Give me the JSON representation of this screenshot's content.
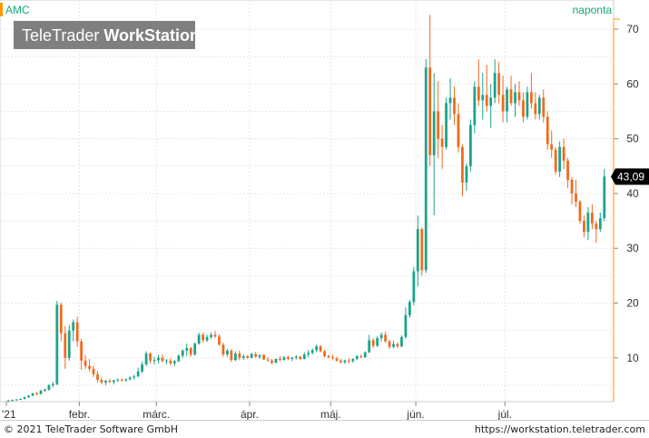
{
  "header": {
    "symbol": "AMC",
    "interval": "naponta",
    "watermark_light": "TeleTrader ",
    "watermark_bold": "WorkStation"
  },
  "footer": {
    "copyright": "© 2021 TeleTrader Software GmbH",
    "url": "https://workstation.teletrader.com"
  },
  "colors": {
    "up": "#1aa38a",
    "down": "#ef6a1e",
    "accent": "#ff9900",
    "interval_text": "#13a87a",
    "symbol_text": "#13a87a",
    "watermark_bg": "#7f7f7f"
  },
  "chart_data": {
    "type": "candlestick",
    "symbol": "AMC",
    "interval": "naponta",
    "ylim": [
      2,
      74
    ],
    "y_ticks": [
      10,
      20,
      30,
      40,
      50,
      60,
      70
    ],
    "last_price": 43.09,
    "last_price_label": "43,09",
    "x_ticks": [
      {
        "label": "'21",
        "index": 0
      },
      {
        "label": "febr.",
        "index": 18
      },
      {
        "label": "márc.",
        "index": 37
      },
      {
        "label": "ápr.",
        "index": 60
      },
      {
        "label": "máj.",
        "index": 80
      },
      {
        "label": "jún.",
        "index": 101
      },
      {
        "label": "júl.",
        "index": 123
      }
    ],
    "candles": [
      [
        2.1,
        2.3,
        2.0,
        2.2
      ],
      [
        2.2,
        2.4,
        2.1,
        2.3
      ],
      [
        2.3,
        2.5,
        2.2,
        2.4
      ],
      [
        2.4,
        2.6,
        2.3,
        2.5
      ],
      [
        2.5,
        2.9,
        2.4,
        2.8
      ],
      [
        2.8,
        3.2,
        2.7,
        3.1
      ],
      [
        3.1,
        3.6,
        3.0,
        3.5
      ],
      [
        3.5,
        3.8,
        3.2,
        3.4
      ],
      [
        3.4,
        4.2,
        3.3,
        4.0
      ],
      [
        4.0,
        4.4,
        3.8,
        4.2
      ],
      [
        4.2,
        5.2,
        4.0,
        5.0
      ],
      [
        5.0,
        5.6,
        4.6,
        5.2
      ],
      [
        5.2,
        20.4,
        5.0,
        19.7
      ],
      [
        19.7,
        20.1,
        13.0,
        14.5
      ],
      [
        14.5,
        15.8,
        8.0,
        10.0
      ],
      [
        10.0,
        16.0,
        9.5,
        15.0
      ],
      [
        15.0,
        17.0,
        13.0,
        16.5
      ],
      [
        16.5,
        17.5,
        12.0,
        13.0
      ],
      [
        13.0,
        13.5,
        7.8,
        9.5
      ],
      [
        9.5,
        10.5,
        8.0,
        8.5
      ],
      [
        8.5,
        9.8,
        7.5,
        8.0
      ],
      [
        8.0,
        8.6,
        6.5,
        7.0
      ],
      [
        7.0,
        7.6,
        5.5,
        6.0
      ],
      [
        6.0,
        6.4,
        5.2,
        5.5
      ],
      [
        5.5,
        6.0,
        5.0,
        5.8
      ],
      [
        5.8,
        6.2,
        5.4,
        5.6
      ],
      [
        5.6,
        6.0,
        5.2,
        5.9
      ],
      [
        5.9,
        6.3,
        5.6,
        6.0
      ],
      [
        6.0,
        6.3,
        5.7,
        5.9
      ],
      [
        5.9,
        6.2,
        5.6,
        6.1
      ],
      [
        6.1,
        6.6,
        5.9,
        6.4
      ],
      [
        6.4,
        6.9,
        6.0,
        6.6
      ],
      [
        6.6,
        8.2,
        6.5,
        7.5
      ],
      [
        7.5,
        9.3,
        7.2,
        8.8
      ],
      [
        8.8,
        11.2,
        8.5,
        10.8
      ],
      [
        10.8,
        11.0,
        9.0,
        9.5
      ],
      [
        9.5,
        10.2,
        8.8,
        9.6
      ],
      [
        9.6,
        10.5,
        9.0,
        10.0
      ],
      [
        10.0,
        10.6,
        9.2,
        9.4
      ],
      [
        9.4,
        9.8,
        8.8,
        9.5
      ],
      [
        9.5,
        9.9,
        8.6,
        9.0
      ],
      [
        9.0,
        9.6,
        8.5,
        9.4
      ],
      [
        9.4,
        10.6,
        9.2,
        10.4
      ],
      [
        10.4,
        11.6,
        10.0,
        11.3
      ],
      [
        11.3,
        12.6,
        10.4,
        11.8
      ],
      [
        11.8,
        12.0,
        10.2,
        10.6
      ],
      [
        10.6,
        12.8,
        10.4,
        12.6
      ],
      [
        12.6,
        14.6,
        12.4,
        14.2
      ],
      [
        14.2,
        14.6,
        12.8,
        13.2
      ],
      [
        13.2,
        14.2,
        12.9,
        13.8
      ],
      [
        13.8,
        14.6,
        13.4,
        14.2
      ],
      [
        14.2,
        14.9,
        13.6,
        13.9
      ],
      [
        13.9,
        14.3,
        12.2,
        12.4
      ],
      [
        12.4,
        12.8,
        10.2,
        10.6
      ],
      [
        10.6,
        11.6,
        10.2,
        11.3
      ],
      [
        11.3,
        11.6,
        9.2,
        9.6
      ],
      [
        9.6,
        11.2,
        9.4,
        10.8
      ],
      [
        10.8,
        11.3,
        9.6,
        10.0
      ],
      [
        10.0,
        10.6,
        9.6,
        10.3
      ],
      [
        10.3,
        10.5,
        9.8,
        10.0
      ],
      [
        10.0,
        10.9,
        9.9,
        10.7
      ],
      [
        10.7,
        11.1,
        10.0,
        10.2
      ],
      [
        10.2,
        10.6,
        9.8,
        10.5
      ],
      [
        10.5,
        10.7,
        9.6,
        9.7
      ],
      [
        9.7,
        10.1,
        9.3,
        9.5
      ],
      [
        9.5,
        9.8,
        8.8,
        9.1
      ],
      [
        9.1,
        9.9,
        9.0,
        9.8
      ],
      [
        9.8,
        10.3,
        9.4,
        9.6
      ],
      [
        9.6,
        10.3,
        9.5,
        10.1
      ],
      [
        10.1,
        10.4,
        9.6,
        9.8
      ],
      [
        9.8,
        10.2,
        9.4,
        10.0
      ],
      [
        10.0,
        10.5,
        9.7,
        10.2
      ],
      [
        10.2,
        10.4,
        9.6,
        9.8
      ],
      [
        9.8,
        11.0,
        9.7,
        10.6
      ],
      [
        10.6,
        11.4,
        10.1,
        10.9
      ],
      [
        10.9,
        11.7,
        10.6,
        11.4
      ],
      [
        11.4,
        12.4,
        11.0,
        12.1
      ],
      [
        12.1,
        12.3,
        11.0,
        11.2
      ],
      [
        11.2,
        11.5,
        10.1,
        10.3
      ],
      [
        10.3,
        10.6,
        9.9,
        10.1
      ],
      [
        10.1,
        10.6,
        9.7,
        9.9
      ],
      [
        9.9,
        10.2,
        9.3,
        9.5
      ],
      [
        9.5,
        9.8,
        9.0,
        9.2
      ],
      [
        9.2,
        9.7,
        8.9,
        9.5
      ],
      [
        9.5,
        9.9,
        9.0,
        9.4
      ],
      [
        9.4,
        9.9,
        9.1,
        9.8
      ],
      [
        9.8,
        10.5,
        9.6,
        10.3
      ],
      [
        10.3,
        10.6,
        9.9,
        10.1
      ],
      [
        10.1,
        11.2,
        10.0,
        11.0
      ],
      [
        11.0,
        14.2,
        10.9,
        13.2
      ],
      [
        13.2,
        13.6,
        11.8,
        12.2
      ],
      [
        12.2,
        14.0,
        12.0,
        13.6
      ],
      [
        13.6,
        14.6,
        13.0,
        14.2
      ],
      [
        14.2,
        14.8,
        12.8,
        13.0
      ],
      [
        13.0,
        13.3,
        11.6,
        12.0
      ],
      [
        12.0,
        13.1,
        11.7,
        12.5
      ],
      [
        12.5,
        12.8,
        11.8,
        12.1
      ],
      [
        12.1,
        14.1,
        11.9,
        13.8
      ],
      [
        13.8,
        19.2,
        13.5,
        17.8
      ],
      [
        17.8,
        20.6,
        17.3,
        20.2
      ],
      [
        20.2,
        26.6,
        19.6,
        25.8
      ],
      [
        25.8,
        36.0,
        23.0,
        33.5
      ],
      [
        33.5,
        33.8,
        25.0,
        26.0
      ],
      [
        26.0,
        64.5,
        25.5,
        63.0
      ],
      [
        63.0,
        72.6,
        45.0,
        47.0
      ],
      [
        47.0,
        62.0,
        36.0,
        55.0
      ],
      [
        55.0,
        60.5,
        46.5,
        50.0
      ],
      [
        50.0,
        52.5,
        44.5,
        48.5
      ],
      [
        48.5,
        57.5,
        48.0,
        56.5
      ],
      [
        56.5,
        61.0,
        53.5,
        57.5
      ],
      [
        57.5,
        59.5,
        52.5,
        54.5
      ],
      [
        54.5,
        56.5,
        47.5,
        48.5
      ],
      [
        48.5,
        49.0,
        39.5,
        42.0
      ],
      [
        42.0,
        45.5,
        40.5,
        45.0
      ],
      [
        45.0,
        53.5,
        44.0,
        52.5
      ],
      [
        52.5,
        60.5,
        51.0,
        59.5
      ],
      [
        59.5,
        64.5,
        56.0,
        57.0
      ],
      [
        57.0,
        62.0,
        53.5,
        58.0
      ],
      [
        58.0,
        63.5,
        55.0,
        56.0
      ],
      [
        56.0,
        60.0,
        52.0,
        57.5
      ],
      [
        57.5,
        64.5,
        56.5,
        62.0
      ],
      [
        62.0,
        64.0,
        56.5,
        58.0
      ],
      [
        58.0,
        61.5,
        53.0,
        55.0
      ],
      [
        55.0,
        59.5,
        53.0,
        59.0
      ],
      [
        59.0,
        61.5,
        56.0,
        56.5
      ],
      [
        56.5,
        60.0,
        54.0,
        58.5
      ],
      [
        58.5,
        60.5,
        56.0,
        57.0
      ],
      [
        57.0,
        58.5,
        53.0,
        54.0
      ],
      [
        54.0,
        59.5,
        53.5,
        58.5
      ],
      [
        58.5,
        62.0,
        55.5,
        56.5
      ],
      [
        56.5,
        58.5,
        53.5,
        54.5
      ],
      [
        54.5,
        58.0,
        53.5,
        57.5
      ],
      [
        57.5,
        59.0,
        53.0,
        54.0
      ],
      [
        54.0,
        55.0,
        48.0,
        49.0
      ],
      [
        49.0,
        51.5,
        46.5,
        48.0
      ],
      [
        48.0,
        48.5,
        43.5,
        44.0
      ],
      [
        44.0,
        49.5,
        43.0,
        48.5
      ],
      [
        48.5,
        50.0,
        44.5,
        46.0
      ],
      [
        46.0,
        46.5,
        41.0,
        42.5
      ],
      [
        42.5,
        43.0,
        38.0,
        40.0
      ],
      [
        40.0,
        42.5,
        37.5,
        38.5
      ],
      [
        38.5,
        38.8,
        34.5,
        35.0
      ],
      [
        35.0,
        36.0,
        32.0,
        33.0
      ],
      [
        33.0,
        37.5,
        31.5,
        36.5
      ],
      [
        36.5,
        38.0,
        33.5,
        34.5
      ],
      [
        34.5,
        35.0,
        31.0,
        33.5
      ],
      [
        33.5,
        36.5,
        33.0,
        35.5
      ],
      [
        35.5,
        44.5,
        35.0,
        43.09
      ]
    ]
  }
}
